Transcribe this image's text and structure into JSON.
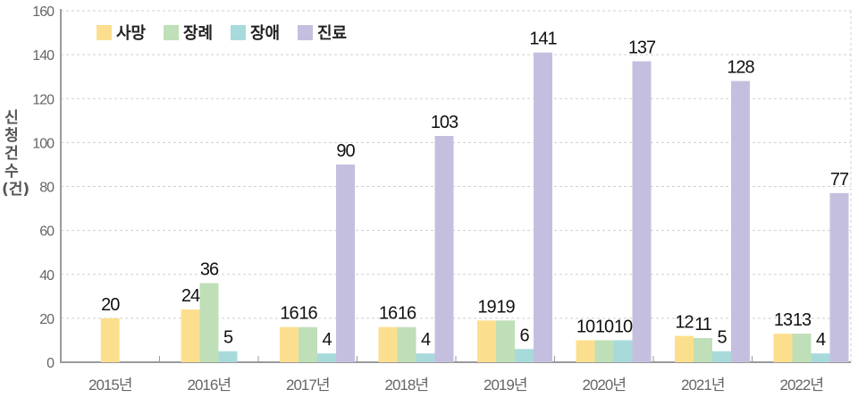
{
  "chart_data": {
    "type": "bar",
    "title": "",
    "xlabel": "",
    "ylabel": "신청건수(건)",
    "ylim": [
      0,
      160
    ],
    "yticks": [
      0,
      20,
      40,
      60,
      80,
      100,
      120,
      140,
      160
    ],
    "grid": true,
    "legend_position": "top-left inside",
    "categories": [
      "2015년",
      "2016년",
      "2017년",
      "2018년",
      "2019년",
      "2020년",
      "2021년",
      "2022년"
    ],
    "series": [
      {
        "name": "사망",
        "color": "#FCDF8E",
        "values": [
          20,
          24,
          16,
          16,
          19,
          10,
          12,
          13
        ]
      },
      {
        "name": "장례",
        "color": "#BFDFB8",
        "values": [
          null,
          36,
          16,
          16,
          19,
          10,
          11,
          13
        ]
      },
      {
        "name": "장애",
        "color": "#A8DADC",
        "values": [
          null,
          5,
          4,
          4,
          6,
          10,
          5,
          4
        ]
      },
      {
        "name": "진료",
        "color": "#C5BFDF",
        "values": [
          null,
          null,
          90,
          103,
          141,
          137,
          128,
          77
        ]
      }
    ]
  }
}
